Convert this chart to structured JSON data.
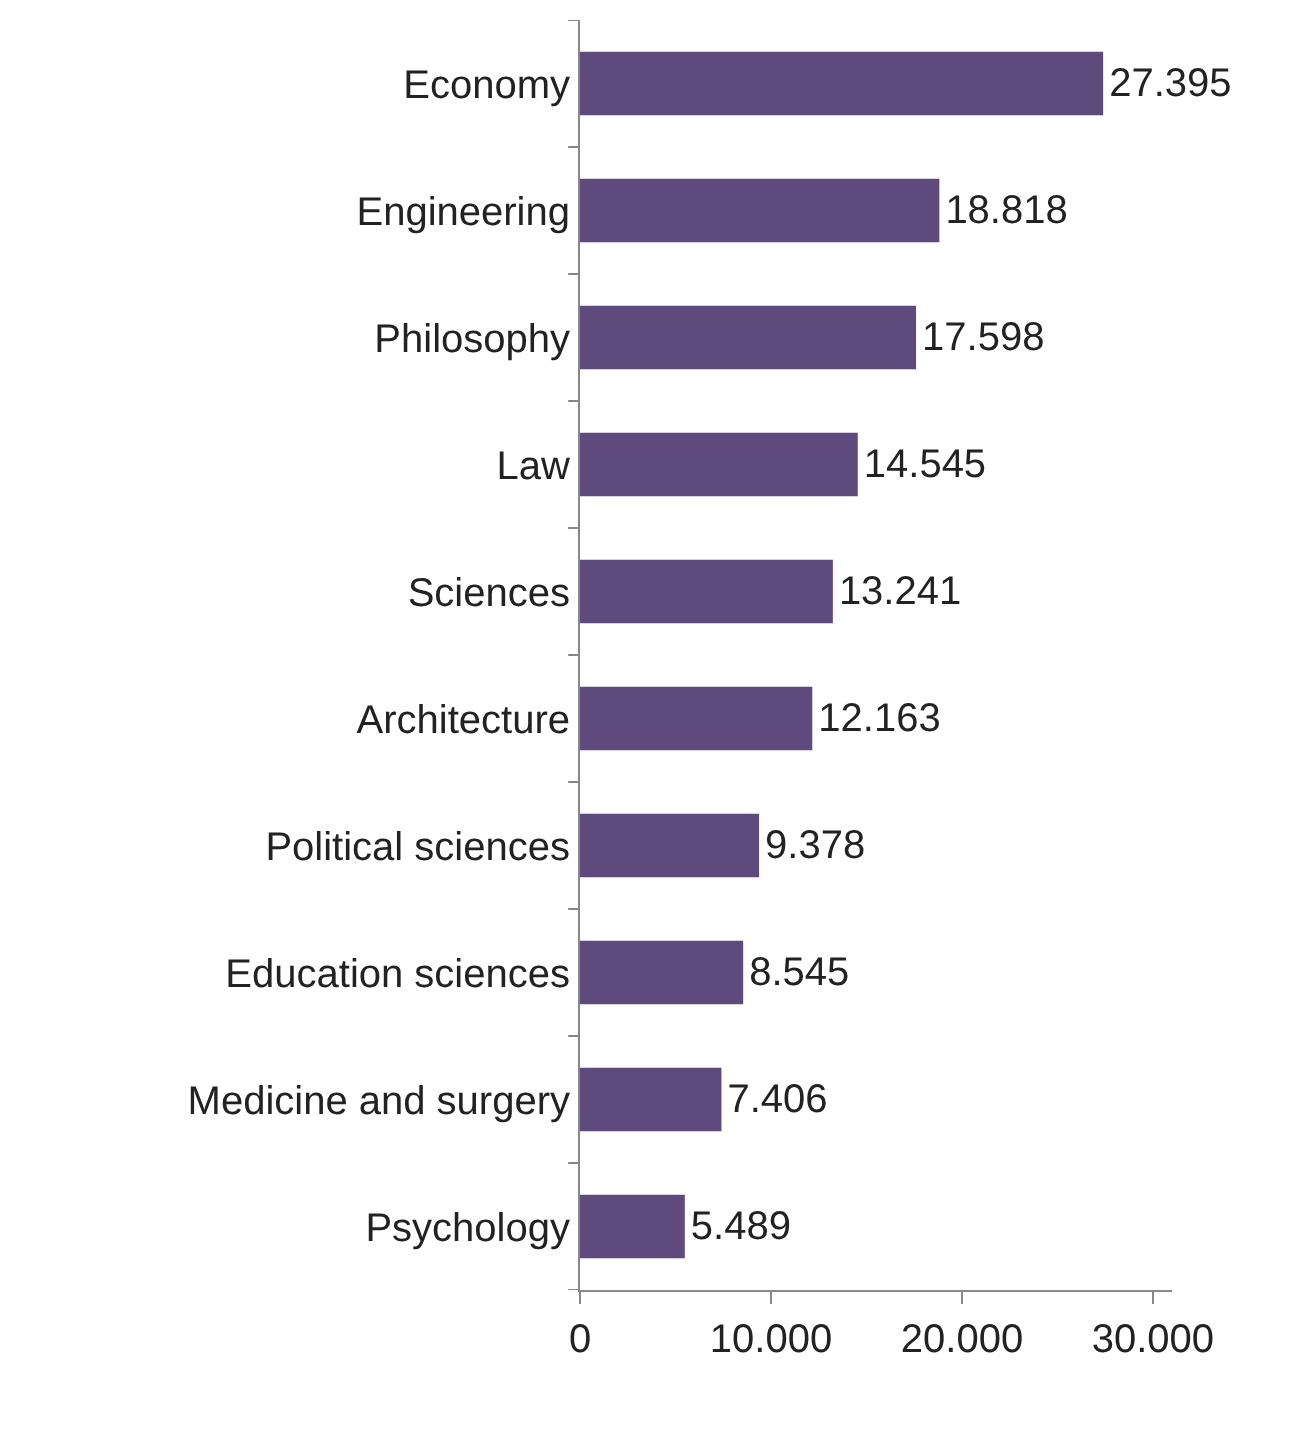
{
  "chart_data": {
    "type": "bar",
    "orientation": "horizontal",
    "categories": [
      "Economy",
      "Engineering",
      "Philosophy",
      "Law",
      "Sciences",
      "Architecture",
      "Political sciences",
      "Education sciences",
      "Medicine and surgery",
      "Psychology"
    ],
    "values": [
      27395,
      18818,
      17598,
      14545,
      13241,
      12163,
      9378,
      8545,
      7406,
      5489
    ],
    "value_labels": [
      "27.395",
      "18.818",
      "17.598",
      "14.545",
      "13.241",
      "12.163",
      "9.378",
      "8.545",
      "7.406",
      "5.489"
    ],
    "color": "#5e4a7d",
    "xlim": [
      0,
      31000
    ],
    "xticks": [
      0,
      {
        "value": 10000,
        "label": "10.000"
      },
      {
        "value": 20000,
        "label": "20.000"
      },
      {
        "value": 30000,
        "label": "30.000"
      }
    ],
    "grid": false
  }
}
